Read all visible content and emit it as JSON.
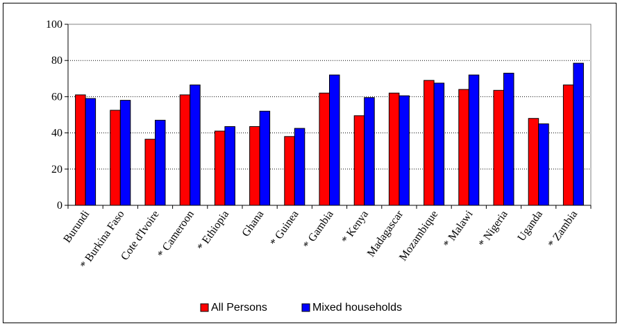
{
  "chart_data": {
    "type": "bar",
    "categories": [
      "Burundi",
      "* Burkina Faso",
      "Cote d'Ivoire",
      "* Cameroon",
      "* Ethiopia",
      "Ghana",
      "* Guinea",
      "* Gambia",
      "* Kenya",
      "Madagascar",
      "Mozambique",
      "* Malawi",
      "* Nigeria",
      "Uganda",
      "* Zambia"
    ],
    "series": [
      {
        "name": "All Persons",
        "color": "#ff0000",
        "values": [
          61,
          52.5,
          36.5,
          61,
          41,
          43.5,
          38,
          62,
          49.5,
          62,
          69,
          64,
          63.5,
          48,
          66.5
        ]
      },
      {
        "name": "Mixed households",
        "color": "#0000ff",
        "values": [
          59,
          58,
          47,
          66.5,
          43.5,
          52,
          42.5,
          72,
          59.5,
          60.5,
          67.5,
          72,
          73,
          45,
          78.5
        ]
      }
    ],
    "yticks": [
      0,
      20,
      40,
      60,
      80,
      100
    ],
    "ylim": [
      0,
      100
    ],
    "title": "",
    "xlabel": "",
    "ylabel": "",
    "grid": true,
    "legend": "bottom"
  }
}
